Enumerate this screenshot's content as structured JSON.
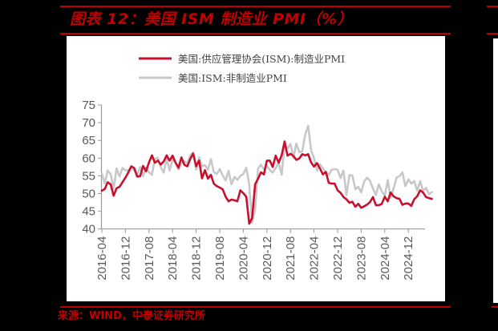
{
  "header": {
    "title": "图表 12：美国 ISM 制造业 PMI（%）"
  },
  "footer": {
    "source": "来源：WIND，中泰证券研究所"
  },
  "colors": {
    "background": "#000000",
    "accent": "#c00000",
    "manufacturing": "#c8102e",
    "non_manufacturing": "#c8c8c8",
    "axis": "#999999"
  },
  "chart_data": {
    "type": "line",
    "title": "美国 ISM 制造业 PMI（%）",
    "xlabel": "",
    "ylabel": "",
    "ylim": [
      40,
      75
    ],
    "yticks": [
      40,
      45,
      50,
      55,
      60,
      65,
      70,
      75
    ],
    "xticks": [
      "2016-04",
      "2016-12",
      "2017-08",
      "2018-04",
      "2018-12",
      "2019-08",
      "2020-04",
      "2020-12",
      "2021-08",
      "2022-04",
      "2022-12",
      "2023-08",
      "2024-04",
      "2024-12"
    ],
    "x_start": "2016-04",
    "x_end": "2025-05",
    "grid": false,
    "legend_position": "top",
    "series": [
      {
        "name": "美国:供应管理协会(ISM):制造业PMI",
        "color": "#c8102e",
        "values": [
          50.8,
          51.3,
          53.2,
          52.6,
          49.4,
          51.5,
          51.9,
          53.2,
          54.5,
          56.0,
          57.7,
          57.2,
          54.8,
          54.9,
          57.8,
          56.3,
          58.8,
          60.8,
          58.7,
          59.3,
          58.2,
          59.1,
          60.8,
          59.3,
          60.7,
          58.7,
          57.3,
          60.2,
          58.1,
          57.7,
          59.8,
          61.3,
          57.7,
          59.3,
          54.3,
          56.6,
          54.2,
          55.3,
          52.8,
          52.1,
          51.7,
          51.2,
          49.1,
          47.8,
          48.3,
          48.1,
          47.8,
          50.9,
          50.1,
          49.1,
          41.5,
          43.1,
          52.6,
          54.2,
          56.0,
          55.4,
          59.3,
          59.3,
          57.5,
          60.7,
          58.7,
          60.8,
          64.7,
          60.7,
          61.2,
          60.6,
          59.5,
          59.9,
          61.1,
          60.8,
          61.1,
          58.8,
          57.6,
          58.6,
          57.1,
          55.4,
          56.1,
          53.0,
          52.8,
          52.8,
          50.9,
          50.2,
          49.0,
          48.4,
          47.4,
          47.7,
          46.3,
          47.1,
          46.0,
          46.4,
          46.9,
          47.6,
          49.0,
          46.7,
          46.7,
          47.1,
          49.1,
          47.8,
          50.3,
          49.2,
          48.7,
          48.5,
          46.8,
          47.2,
          47.2,
          46.5,
          48.4,
          49.2,
          50.9,
          50.3,
          49.0,
          48.7,
          48.5
        ],
        "note": "values estimated from pixel positions; last point approx 2025-05"
      },
      {
        "name": "美国:ISM:非制造业PMI",
        "color": "#c8c8c8",
        "values": [
          55.7,
          52.9,
          56.5,
          55.5,
          51.4,
          57.1,
          54.8,
          57.2,
          56.6,
          56.5,
          57.6,
          56.5,
          55.2,
          57.5,
          54.9,
          57.4,
          56.0,
          55.3,
          59.8,
          60.1,
          57.4,
          55.9,
          59.9,
          56.5,
          59.5,
          58.8,
          56.8,
          58.6,
          59.1,
          58.5,
          60.8,
          61.6,
          56.8,
          60.3,
          57.7,
          58.0,
          56.7,
          59.7,
          56.1,
          55.5,
          56.9,
          55.1,
          53.7,
          56.4,
          52.6,
          54.7,
          53.9,
          55.0,
          55.5,
          57.3,
          52.5,
          41.8,
          45.4,
          57.1,
          58.1,
          56.9,
          57.8,
          56.6,
          55.9,
          57.2,
          58.7,
          55.3,
          63.7,
          62.7,
          64.0,
          60.1,
          64.1,
          61.7,
          61.9,
          66.7,
          69.1,
          62.3,
          59.9,
          56.5,
          58.3,
          57.1,
          55.9,
          55.3,
          56.7,
          56.9,
          56.7,
          54.4,
          56.5,
          49.6,
          55.2,
          55.1,
          51.2,
          51.9,
          50.3,
          53.4,
          54.5,
          53.6,
          51.4,
          49.6,
          52.6,
          50.6,
          49.4,
          53.8,
          48.8,
          51.4,
          54.5,
          54.9,
          56.0,
          52.1,
          54.0,
          52.8,
          53.5,
          50.8,
          53.5,
          50.8,
          51.6,
          49.8,
          50.4
        ],
        "note": "values estimated from pixel positions"
      }
    ]
  },
  "legend": {
    "items": [
      {
        "label": "美国:供应管理协会(ISM):制造业PMI",
        "color": "#c8102e"
      },
      {
        "label": "美国:ISM:非制造业PMI",
        "color": "#c8c8c8"
      }
    ]
  }
}
